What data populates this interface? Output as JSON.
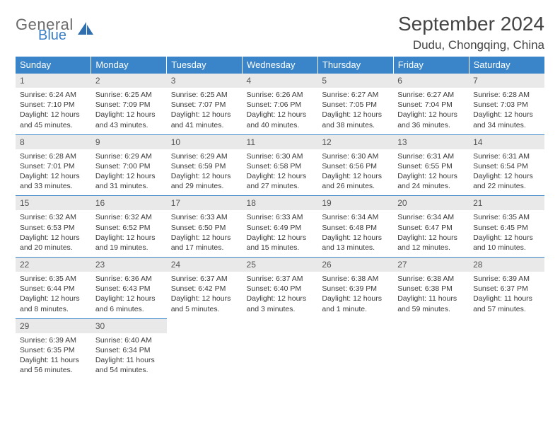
{
  "logo": {
    "top": "General",
    "bottom": "Blue",
    "icon_color": "#2f6fb0"
  },
  "title": "September 2024",
  "location": "Dudu, Chongqing, China",
  "colors": {
    "header_bg": "#3a85c9",
    "header_text": "#ffffff",
    "border": "#3a85c9",
    "daynum_bg": "#e9e9e9",
    "body_text": "#3a3a3a"
  },
  "day_headers": [
    "Sunday",
    "Monday",
    "Tuesday",
    "Wednesday",
    "Thursday",
    "Friday",
    "Saturday"
  ],
  "weeks": [
    [
      {
        "n": "1",
        "sr": "6:24 AM",
        "ss": "7:10 PM",
        "dl": "12 hours and 45 minutes."
      },
      {
        "n": "2",
        "sr": "6:25 AM",
        "ss": "7:09 PM",
        "dl": "12 hours and 43 minutes."
      },
      {
        "n": "3",
        "sr": "6:25 AM",
        "ss": "7:07 PM",
        "dl": "12 hours and 41 minutes."
      },
      {
        "n": "4",
        "sr": "6:26 AM",
        "ss": "7:06 PM",
        "dl": "12 hours and 40 minutes."
      },
      {
        "n": "5",
        "sr": "6:27 AM",
        "ss": "7:05 PM",
        "dl": "12 hours and 38 minutes."
      },
      {
        "n": "6",
        "sr": "6:27 AM",
        "ss": "7:04 PM",
        "dl": "12 hours and 36 minutes."
      },
      {
        "n": "7",
        "sr": "6:28 AM",
        "ss": "7:03 PM",
        "dl": "12 hours and 34 minutes."
      }
    ],
    [
      {
        "n": "8",
        "sr": "6:28 AM",
        "ss": "7:01 PM",
        "dl": "12 hours and 33 minutes."
      },
      {
        "n": "9",
        "sr": "6:29 AM",
        "ss": "7:00 PM",
        "dl": "12 hours and 31 minutes."
      },
      {
        "n": "10",
        "sr": "6:29 AM",
        "ss": "6:59 PM",
        "dl": "12 hours and 29 minutes."
      },
      {
        "n": "11",
        "sr": "6:30 AM",
        "ss": "6:58 PM",
        "dl": "12 hours and 27 minutes."
      },
      {
        "n": "12",
        "sr": "6:30 AM",
        "ss": "6:56 PM",
        "dl": "12 hours and 26 minutes."
      },
      {
        "n": "13",
        "sr": "6:31 AM",
        "ss": "6:55 PM",
        "dl": "12 hours and 24 minutes."
      },
      {
        "n": "14",
        "sr": "6:31 AM",
        "ss": "6:54 PM",
        "dl": "12 hours and 22 minutes."
      }
    ],
    [
      {
        "n": "15",
        "sr": "6:32 AM",
        "ss": "6:53 PM",
        "dl": "12 hours and 20 minutes."
      },
      {
        "n": "16",
        "sr": "6:32 AM",
        "ss": "6:52 PM",
        "dl": "12 hours and 19 minutes."
      },
      {
        "n": "17",
        "sr": "6:33 AM",
        "ss": "6:50 PM",
        "dl": "12 hours and 17 minutes."
      },
      {
        "n": "18",
        "sr": "6:33 AM",
        "ss": "6:49 PM",
        "dl": "12 hours and 15 minutes."
      },
      {
        "n": "19",
        "sr": "6:34 AM",
        "ss": "6:48 PM",
        "dl": "12 hours and 13 minutes."
      },
      {
        "n": "20",
        "sr": "6:34 AM",
        "ss": "6:47 PM",
        "dl": "12 hours and 12 minutes."
      },
      {
        "n": "21",
        "sr": "6:35 AM",
        "ss": "6:45 PM",
        "dl": "12 hours and 10 minutes."
      }
    ],
    [
      {
        "n": "22",
        "sr": "6:35 AM",
        "ss": "6:44 PM",
        "dl": "12 hours and 8 minutes."
      },
      {
        "n": "23",
        "sr": "6:36 AM",
        "ss": "6:43 PM",
        "dl": "12 hours and 6 minutes."
      },
      {
        "n": "24",
        "sr": "6:37 AM",
        "ss": "6:42 PM",
        "dl": "12 hours and 5 minutes."
      },
      {
        "n": "25",
        "sr": "6:37 AM",
        "ss": "6:40 PM",
        "dl": "12 hours and 3 minutes."
      },
      {
        "n": "26",
        "sr": "6:38 AM",
        "ss": "6:39 PM",
        "dl": "12 hours and 1 minute."
      },
      {
        "n": "27",
        "sr": "6:38 AM",
        "ss": "6:38 PM",
        "dl": "11 hours and 59 minutes."
      },
      {
        "n": "28",
        "sr": "6:39 AM",
        "ss": "6:37 PM",
        "dl": "11 hours and 57 minutes."
      }
    ],
    [
      {
        "n": "29",
        "sr": "6:39 AM",
        "ss": "6:35 PM",
        "dl": "11 hours and 56 minutes."
      },
      {
        "n": "30",
        "sr": "6:40 AM",
        "ss": "6:34 PM",
        "dl": "11 hours and 54 minutes."
      },
      null,
      null,
      null,
      null,
      null
    ]
  ],
  "labels": {
    "sunrise": "Sunrise:",
    "sunset": "Sunset:",
    "daylight": "Daylight:"
  }
}
